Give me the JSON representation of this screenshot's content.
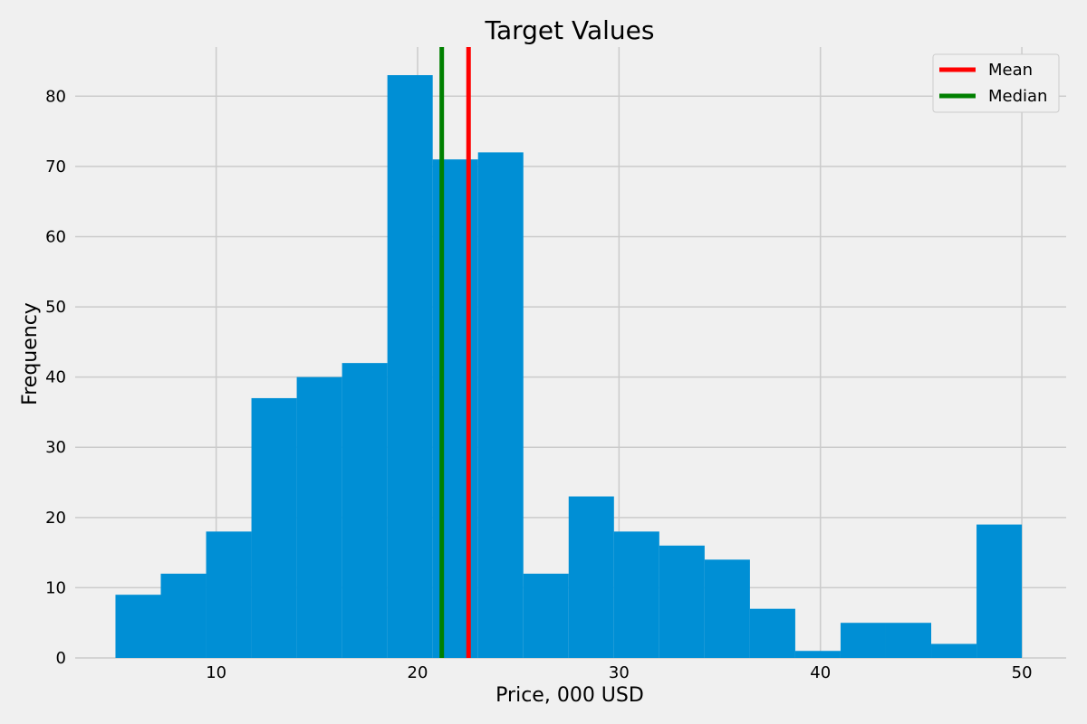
{
  "chart_data": {
    "type": "bar",
    "subtype": "histogram",
    "title": "Target Values",
    "xlabel": "Price, 000 USD",
    "ylabel": "Frequency",
    "xlim": [
      3,
      52.2
    ],
    "ylim": [
      0,
      87
    ],
    "xticks": [
      10,
      20,
      30,
      40,
      50
    ],
    "yticks": [
      0,
      10,
      20,
      30,
      40,
      50,
      60,
      70,
      80
    ],
    "grid": true,
    "bins": [
      {
        "x0": 5.0,
        "x1": 7.25,
        "count": 9
      },
      {
        "x0": 7.25,
        "x1": 9.5,
        "count": 12
      },
      {
        "x0": 9.5,
        "x1": 11.75,
        "count": 18
      },
      {
        "x0": 11.75,
        "x1": 14.0,
        "count": 37
      },
      {
        "x0": 14.0,
        "x1": 16.25,
        "count": 40
      },
      {
        "x0": 16.25,
        "x1": 18.5,
        "count": 42
      },
      {
        "x0": 18.5,
        "x1": 20.75,
        "count": 83
      },
      {
        "x0": 20.75,
        "x1": 23.0,
        "count": 71
      },
      {
        "x0": 23.0,
        "x1": 25.25,
        "count": 72
      },
      {
        "x0": 25.25,
        "x1": 27.5,
        "count": 12
      },
      {
        "x0": 27.5,
        "x1": 29.75,
        "count": 23
      },
      {
        "x0": 29.75,
        "x1": 32.0,
        "count": 18
      },
      {
        "x0": 32.0,
        "x1": 34.25,
        "count": 16
      },
      {
        "x0": 34.25,
        "x1": 36.5,
        "count": 14
      },
      {
        "x0": 36.5,
        "x1": 38.75,
        "count": 7
      },
      {
        "x0": 38.75,
        "x1": 41.0,
        "count": 1
      },
      {
        "x0": 41.0,
        "x1": 43.25,
        "count": 5
      },
      {
        "x0": 43.25,
        "x1": 45.5,
        "count": 5
      },
      {
        "x0": 45.5,
        "x1": 47.75,
        "count": 2
      },
      {
        "x0": 47.75,
        "x1": 50.0,
        "count": 19
      }
    ],
    "bar_color": "#008fd5",
    "reference_lines": [
      {
        "name": "Mean",
        "x": 22.53,
        "color": "#ff0000"
      },
      {
        "name": "Median",
        "x": 21.2,
        "color": "#008000"
      }
    ],
    "legend": {
      "placement": "top-right",
      "entries": [
        {
          "label": "Mean",
          "color": "#ff0000"
        },
        {
          "label": "Median",
          "color": "#008000"
        }
      ]
    }
  }
}
